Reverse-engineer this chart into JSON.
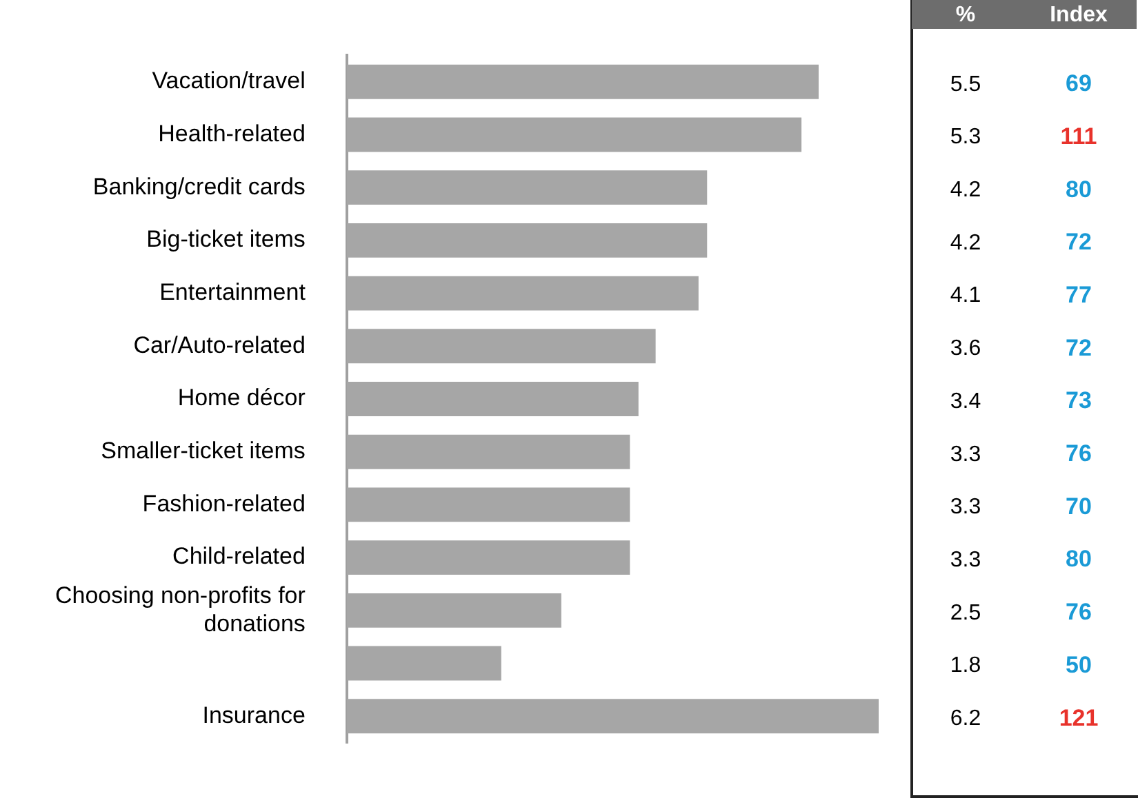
{
  "chart_data": {
    "type": "bar",
    "orientation": "horizontal",
    "categories": [
      "Vacation/travel",
      "Health-related",
      "Banking/credit cards",
      "Big-ticket items",
      "Entertainment",
      "Car/Auto-related",
      "Home décor",
      "Smaller-ticket items",
      "Fashion-related",
      "Child-related",
      "Choosing non-profits for donations",
      null,
      "Insurance"
    ],
    "series": [
      {
        "name": "%",
        "color": "#a6a6a6",
        "values": [
          5.5,
          5.3,
          4.2,
          4.2,
          4.1,
          3.6,
          3.4,
          3.3,
          3.3,
          3.3,
          2.5,
          1.8,
          6.2
        ]
      }
    ],
    "xlim": [
      0,
      6.2
    ],
    "data_labels": true,
    "tick_labels": "y",
    "legend": false,
    "annotations": [
      "Index",
      "69",
      "111",
      "80",
      "72",
      "77",
      "72",
      "73",
      "76",
      "70",
      "80",
      "76",
      "50",
      "121"
    ]
  }
}
